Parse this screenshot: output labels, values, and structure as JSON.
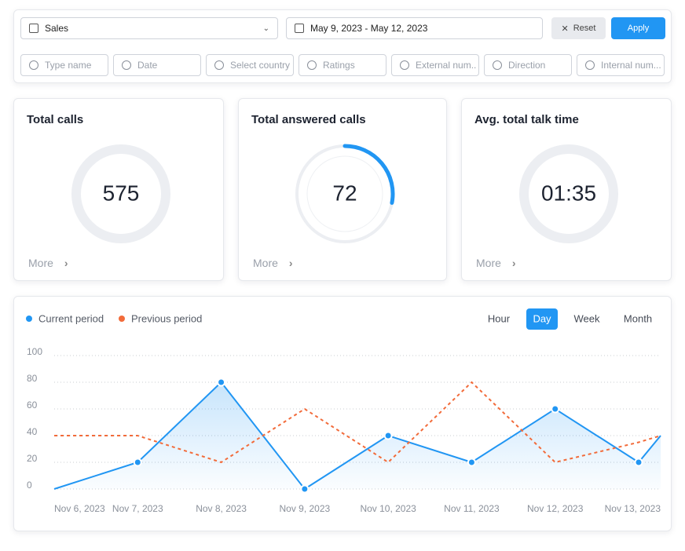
{
  "filters": {
    "department": "Sales",
    "date_range": "May 9, 2023 - May 12, 2023",
    "reset": "Reset",
    "apply": "Apply",
    "fields": [
      "Type name",
      "Date",
      "Select country",
      "Ratings",
      "External num..",
      "Direction",
      "Internal num..."
    ]
  },
  "cards": [
    {
      "title": "Total calls",
      "value": 575,
      "more": "More"
    },
    {
      "title": "Total answered calls",
      "value": 72,
      "progress": 28,
      "more": "More"
    },
    {
      "title": "Avg. total talk time",
      "value": "01:35",
      "more": "More"
    }
  ],
  "chart_data": {
    "type": "line",
    "categories": [
      "Nov 6, 2023",
      "Nov 7, 2023",
      "Nov 8, 2023",
      "Nov 9, 2023",
      "Nov 10, 2023",
      "Nov 11, 2023",
      "Nov 12, 2023",
      "Nov 13, 2023",
      null
    ],
    "series": [
      {
        "name": "Current period",
        "color": "#2196f3",
        "values": [
          0,
          20,
          80,
          0,
          40,
          20,
          60,
          20,
          40
        ]
      },
      {
        "name": "Previous period",
        "color": "#f26b3a",
        "dashed": true,
        "values": [
          40,
          40,
          20,
          60,
          20,
          80,
          20,
          35,
          40
        ]
      }
    ],
    "ylim": [
      0,
      100
    ],
    "yticks": [
      0,
      20,
      40,
      60,
      80,
      100
    ],
    "grid": true,
    "periods": [
      "Hour",
      "Day",
      "Week",
      "Month"
    ],
    "active_period": 1
  }
}
